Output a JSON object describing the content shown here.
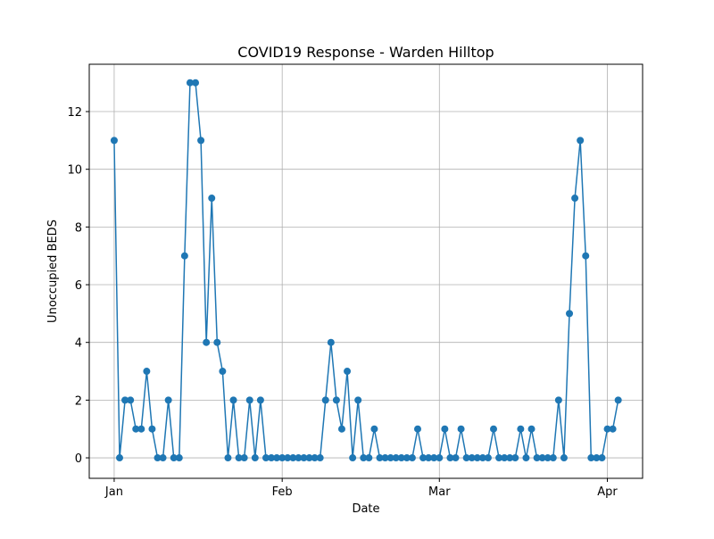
{
  "chart_data": {
    "type": "line",
    "title": "COVID19 Response - Warden Hilltop",
    "x_label": "Date",
    "y_label": "Unoccupied BEDS",
    "x": [
      0,
      1,
      2,
      3,
      4,
      5,
      6,
      7,
      8,
      9,
      10,
      11,
      12,
      13,
      14,
      15,
      16,
      17,
      18,
      19,
      20,
      21,
      22,
      23,
      24,
      25,
      26,
      27,
      28,
      29,
      30,
      31,
      32,
      33,
      34,
      35,
      36,
      37,
      38,
      39,
      40,
      41,
      42,
      43,
      44,
      45,
      46,
      47,
      48,
      49,
      50,
      51,
      52,
      53,
      54,
      55,
      56,
      57,
      58,
      59,
      60,
      61,
      62,
      63,
      64,
      65,
      66,
      67,
      68,
      69,
      70,
      71,
      72,
      73,
      74,
      75,
      76,
      77,
      78,
      79,
      80,
      81,
      82,
      83,
      84,
      85,
      86,
      87,
      88,
      89,
      90,
      91,
      92,
      93
    ],
    "series": [
      {
        "name": "Unoccupied BEDS",
        "color": "#1f77b4",
        "values": [
          11,
          0,
          2,
          2,
          1,
          1,
          3,
          1,
          0,
          0,
          2,
          0,
          0,
          7,
          13,
          13,
          11,
          4,
          9,
          4,
          3,
          0,
          2,
          0,
          0,
          2,
          0,
          2,
          0,
          0,
          0,
          0,
          0,
          0,
          0,
          0,
          0,
          0,
          0,
          2,
          4,
          2,
          1,
          3,
          0,
          2,
          0,
          0,
          1,
          0,
          0,
          0,
          0,
          0,
          0,
          0,
          1,
          0,
          0,
          0,
          0,
          1,
          0,
          0,
          1,
          0,
          0,
          0,
          0,
          0,
          1,
          0,
          0,
          0,
          0,
          1,
          0,
          1,
          0,
          0,
          0,
          0,
          2,
          0,
          5,
          9,
          11,
          7,
          0,
          0,
          0,
          1,
          1,
          2
        ]
      }
    ],
    "xlim": [
      -4.6,
      97.5
    ],
    "xticks": [
      {
        "value": 0,
        "label": "Jan"
      },
      {
        "value": 31,
        "label": "Feb"
      },
      {
        "value": 60,
        "label": "Mar"
      },
      {
        "value": 91,
        "label": "Apr"
      }
    ],
    "ylim": [
      -0.71,
      13.64
    ],
    "yticks": [
      0,
      2,
      4,
      6,
      8,
      10,
      12
    ],
    "grid": true
  }
}
